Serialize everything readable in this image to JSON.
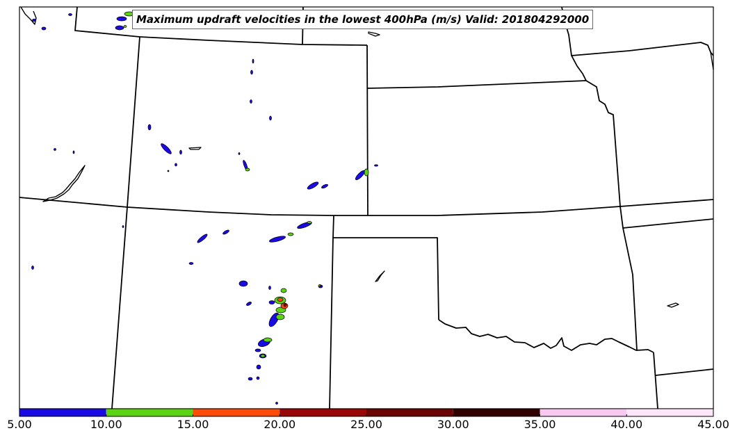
{
  "title": "Maximum updraft velocities in the lowest 400hPa (m/s) Valid: 201804292000",
  "colorbar": {
    "ticks": [
      "5.00",
      "10.00",
      "15.00",
      "20.00",
      "25.00",
      "30.00",
      "35.00",
      "40.00",
      "45.00"
    ],
    "bins": [
      {
        "from": 5,
        "to": 10,
        "color": "#1a0ae6"
      },
      {
        "from": 10,
        "to": 15,
        "color": "#5bd313"
      },
      {
        "from": 15,
        "to": 20,
        "color": "#ff4a08"
      },
      {
        "from": 20,
        "to": 25,
        "color": "#9a0606"
      },
      {
        "from": 25,
        "to": 30,
        "color": "#6a0404"
      },
      {
        "from": 30,
        "to": 35,
        "color": "#300000"
      },
      {
        "from": 35,
        "to": 40,
        "color": "#f8c8f0"
      },
      {
        "from": 40,
        "to": 45,
        "color": "#fde6fa"
      }
    ]
  },
  "colors": {
    "border": "#000000",
    "background": "#ffffff"
  }
}
